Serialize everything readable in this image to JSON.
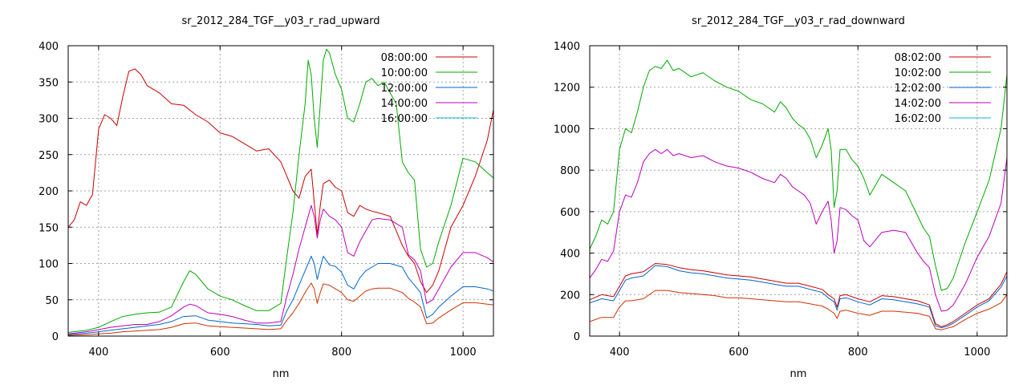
{
  "chart_data": [
    {
      "type": "line",
      "title": "sr_2012_284_TGF__y03_r_rad_upward",
      "xlabel": "nm",
      "ylabel": "",
      "xlim": [
        350,
        1050
      ],
      "ylim": [
        0,
        400
      ],
      "xticks": [
        400,
        600,
        800,
        1000
      ],
      "yticks": [
        0,
        50,
        100,
        150,
        200,
        250,
        300,
        350,
        400
      ],
      "grid": true,
      "legend": "top-right",
      "series": [
        {
          "name": "08:00:00",
          "color": "#cc0000",
          "x": [
            350,
            360,
            370,
            380,
            390,
            400,
            410,
            420,
            430,
            440,
            450,
            460,
            470,
            480,
            490,
            500,
            520,
            540,
            560,
            580,
            600,
            620,
            640,
            660,
            680,
            700,
            710,
            720,
            730,
            740,
            750,
            755,
            760,
            765,
            770,
            780,
            790,
            800,
            810,
            820,
            830,
            840,
            850,
            860,
            880,
            900,
            910,
            920,
            930,
            940,
            950,
            960,
            980,
            1000,
            1020,
            1040,
            1050
          ],
          "y": [
            150,
            160,
            185,
            180,
            195,
            285,
            305,
            300,
            290,
            330,
            365,
            368,
            360,
            345,
            340,
            335,
            320,
            318,
            305,
            295,
            280,
            275,
            265,
            255,
            258,
            240,
            220,
            200,
            190,
            220,
            230,
            185,
            140,
            180,
            210,
            215,
            205,
            200,
            170,
            165,
            180,
            175,
            172,
            170,
            165,
            125,
            110,
            100,
            75,
            60,
            70,
            90,
            150,
            180,
            220,
            270,
            312
          ]
        },
        {
          "name": "10:00:00",
          "color": "#00aa00",
          "x": [
            350,
            380,
            400,
            420,
            440,
            460,
            480,
            500,
            520,
            540,
            550,
            560,
            580,
            600,
            620,
            640,
            660,
            680,
            700,
            710,
            720,
            730,
            740,
            745,
            750,
            755,
            760,
            765,
            770,
            775,
            780,
            790,
            800,
            810,
            820,
            830,
            840,
            850,
            860,
            870,
            880,
            890,
            900,
            910,
            920,
            930,
            940,
            950,
            960,
            980,
            1000,
            1020,
            1040,
            1050
          ],
          "y": [
            5,
            8,
            12,
            20,
            27,
            30,
            32,
            33,
            40,
            75,
            90,
            85,
            65,
            55,
            50,
            42,
            35,
            35,
            45,
            110,
            170,
            250,
            320,
            380,
            360,
            300,
            260,
            320,
            380,
            395,
            390,
            360,
            340,
            300,
            295,
            320,
            350,
            355,
            345,
            350,
            335,
            320,
            240,
            225,
            215,
            120,
            95,
            100,
            130,
            180,
            245,
            240,
            225,
            218
          ]
        },
        {
          "name": "12:00:00",
          "color": "#0066cc",
          "x": [
            350,
            380,
            400,
            420,
            440,
            460,
            480,
            500,
            520,
            540,
            560,
            580,
            600,
            620,
            640,
            660,
            680,
            700,
            710,
            720,
            730,
            740,
            750,
            755,
            760,
            765,
            770,
            780,
            790,
            800,
            810,
            820,
            830,
            840,
            850,
            860,
            880,
            900,
            910,
            920,
            930,
            940,
            950,
            960,
            980,
            1000,
            1020,
            1040,
            1050
          ],
          "y": [
            2,
            4,
            6,
            8,
            10,
            12,
            14,
            16,
            20,
            27,
            28,
            22,
            20,
            18,
            17,
            16,
            14,
            15,
            35,
            50,
            70,
            90,
            110,
            100,
            78,
            95,
            110,
            98,
            96,
            88,
            70,
            65,
            80,
            90,
            95,
            100,
            100,
            95,
            80,
            70,
            60,
            25,
            30,
            40,
            55,
            68,
            68,
            65,
            62
          ]
        },
        {
          "name": "14:00:00",
          "color": "#bb00bb",
          "x": [
            350,
            380,
            400,
            420,
            440,
            460,
            480,
            500,
            520,
            540,
            550,
            560,
            580,
            600,
            620,
            640,
            660,
            680,
            700,
            710,
            720,
            730,
            740,
            750,
            755,
            760,
            765,
            770,
            780,
            790,
            800,
            810,
            820,
            830,
            840,
            850,
            860,
            880,
            900,
            910,
            920,
            930,
            940,
            950,
            960,
            980,
            1000,
            1020,
            1040,
            1050
          ],
          "y": [
            3,
            6,
            9,
            12,
            14,
            16,
            16,
            20,
            28,
            40,
            44,
            42,
            32,
            30,
            27,
            22,
            18,
            18,
            20,
            55,
            85,
            120,
            150,
            180,
            165,
            135,
            160,
            175,
            165,
            160,
            150,
            115,
            110,
            130,
            145,
            160,
            162,
            160,
            150,
            112,
            105,
            90,
            45,
            50,
            65,
            95,
            115,
            115,
            108,
            102
          ]
        },
        {
          "name": "16:00:00",
          "color": "#00bbcc",
          "x": [
            350,
            1050
          ],
          "y": [
            null,
            null
          ]
        },
        {
          "name": "",
          "color": "#cc3300",
          "x": [
            350,
            380,
            400,
            420,
            440,
            460,
            480,
            500,
            520,
            540,
            560,
            580,
            600,
            620,
            640,
            660,
            680,
            700,
            710,
            720,
            730,
            740,
            750,
            755,
            760,
            765,
            770,
            780,
            790,
            800,
            810,
            820,
            830,
            840,
            850,
            860,
            880,
            900,
            910,
            920,
            930,
            940,
            950,
            960,
            980,
            1000,
            1020,
            1040,
            1050
          ],
          "y": [
            1,
            2,
            3,
            4,
            6,
            7,
            8,
            9,
            12,
            17,
            18,
            14,
            13,
            12,
            11,
            10,
            9,
            10,
            22,
            32,
            45,
            60,
            73,
            65,
            45,
            60,
            72,
            70,
            65,
            60,
            50,
            48,
            55,
            62,
            65,
            66,
            66,
            60,
            52,
            47,
            40,
            17,
            18,
            25,
            36,
            46,
            46,
            44,
            43
          ]
        }
      ]
    },
    {
      "type": "line",
      "title": "sr_2012_284_TGF__y03_r_rad_downward",
      "xlabel": "nm",
      "ylabel": "",
      "xlim": [
        350,
        1050
      ],
      "ylim": [
        0,
        1400
      ],
      "xticks": [
        400,
        600,
        800,
        1000
      ],
      "yticks": [
        0,
        200,
        400,
        600,
        800,
        1000,
        1200,
        1400
      ],
      "grid": true,
      "legend": "top-right",
      "series": [
        {
          "name": "08:02:00",
          "color": "#cc0000",
          "x": [
            350,
            370,
            390,
            400,
            410,
            420,
            440,
            460,
            480,
            500,
            520,
            540,
            560,
            580,
            600,
            620,
            640,
            660,
            680,
            700,
            720,
            740,
            750,
            760,
            765,
            770,
            780,
            800,
            820,
            840,
            860,
            880,
            900,
            920,
            930,
            940,
            950,
            960,
            980,
            1000,
            1020,
            1040,
            1050
          ],
          "y": [
            175,
            200,
            190,
            240,
            290,
            300,
            310,
            350,
            345,
            330,
            320,
            315,
            305,
            295,
            290,
            285,
            275,
            265,
            255,
            255,
            240,
            225,
            200,
            180,
            140,
            195,
            200,
            180,
            165,
            195,
            190,
            180,
            170,
            150,
            60,
            45,
            55,
            70,
            110,
            150,
            180,
            250,
            310
          ]
        },
        {
          "name": "10:02:00",
          "color": "#00aa00",
          "x": [
            350,
            360,
            370,
            380,
            390,
            400,
            410,
            420,
            430,
            440,
            450,
            460,
            470,
            480,
            490,
            500,
            520,
            540,
            560,
            580,
            600,
            620,
            640,
            660,
            670,
            680,
            690,
            700,
            710,
            720,
            730,
            740,
            750,
            755,
            760,
            765,
            770,
            780,
            790,
            800,
            810,
            820,
            840,
            860,
            880,
            900,
            910,
            920,
            930,
            940,
            950,
            960,
            980,
            1000,
            1020,
            1040,
            1050
          ],
          "y": [
            420,
            480,
            560,
            540,
            600,
            900,
            1000,
            980,
            1080,
            1200,
            1280,
            1300,
            1290,
            1330,
            1280,
            1290,
            1250,
            1270,
            1230,
            1200,
            1180,
            1140,
            1120,
            1080,
            1130,
            1100,
            1050,
            1020,
            1000,
            950,
            860,
            920,
            1000,
            900,
            620,
            700,
            900,
            900,
            850,
            820,
            760,
            680,
            780,
            740,
            700,
            580,
            520,
            480,
            340,
            220,
            230,
            280,
            450,
            600,
            750,
            1000,
            1260
          ]
        },
        {
          "name": "12:02:00",
          "color": "#0066cc",
          "x": [
            350,
            370,
            390,
            400,
            410,
            420,
            440,
            460,
            480,
            500,
            520,
            540,
            560,
            580,
            600,
            620,
            640,
            660,
            680,
            700,
            720,
            740,
            750,
            760,
            765,
            770,
            780,
            800,
            820,
            840,
            860,
            880,
            900,
            920,
            930,
            940,
            950,
            960,
            980,
            1000,
            1020,
            1040,
            1050
          ],
          "y": [
            160,
            180,
            170,
            220,
            270,
            280,
            290,
            340,
            335,
            315,
            305,
            300,
            290,
            280,
            275,
            270,
            260,
            250,
            240,
            240,
            225,
            210,
            185,
            165,
            125,
            180,
            185,
            165,
            150,
            180,
            175,
            165,
            155,
            140,
            50,
            40,
            48,
            62,
            100,
            140,
            170,
            235,
            290
          ]
        },
        {
          "name": "14:02:00",
          "color": "#bb00bb",
          "x": [
            350,
            360,
            370,
            380,
            390,
            400,
            410,
            420,
            430,
            440,
            450,
            460,
            470,
            480,
            490,
            500,
            520,
            540,
            560,
            580,
            600,
            620,
            640,
            660,
            670,
            680,
            690,
            700,
            710,
            720,
            730,
            740,
            750,
            755,
            760,
            765,
            770,
            780,
            790,
            800,
            810,
            820,
            840,
            860,
            880,
            900,
            910,
            920,
            930,
            940,
            950,
            960,
            980,
            1000,
            1020,
            1040,
            1050
          ],
          "y": [
            280,
            320,
            370,
            360,
            410,
            600,
            680,
            670,
            740,
            840,
            880,
            900,
            880,
            900,
            870,
            880,
            860,
            870,
            840,
            820,
            810,
            790,
            760,
            740,
            780,
            760,
            720,
            700,
            680,
            640,
            540,
            600,
            650,
            560,
            400,
            460,
            620,
            610,
            580,
            560,
            460,
            430,
            500,
            510,
            500,
            400,
            360,
            330,
            200,
            120,
            125,
            150,
            250,
            380,
            480,
            640,
            860
          ]
        },
        {
          "name": "16:02:00",
          "color": "#00bbcc",
          "x": [
            350,
            1050
          ],
          "y": [
            null,
            null
          ]
        },
        {
          "name": "",
          "color": "#cc3300",
          "x": [
            350,
            370,
            390,
            400,
            410,
            420,
            440,
            460,
            480,
            500,
            520,
            540,
            560,
            580,
            600,
            620,
            640,
            660,
            680,
            700,
            720,
            740,
            750,
            760,
            765,
            770,
            780,
            800,
            820,
            840,
            860,
            880,
            900,
            920,
            930,
            940,
            950,
            960,
            980,
            1000,
            1020,
            1040,
            1050
          ],
          "y": [
            70,
            90,
            90,
            140,
            170,
            170,
            180,
            220,
            220,
            210,
            205,
            200,
            195,
            185,
            185,
            180,
            175,
            170,
            165,
            165,
            155,
            145,
            130,
            110,
            85,
            120,
            125,
            110,
            100,
            120,
            120,
            115,
            110,
            95,
            35,
            30,
            38,
            45,
            80,
            110,
            130,
            160,
            200
          ]
        }
      ]
    }
  ]
}
